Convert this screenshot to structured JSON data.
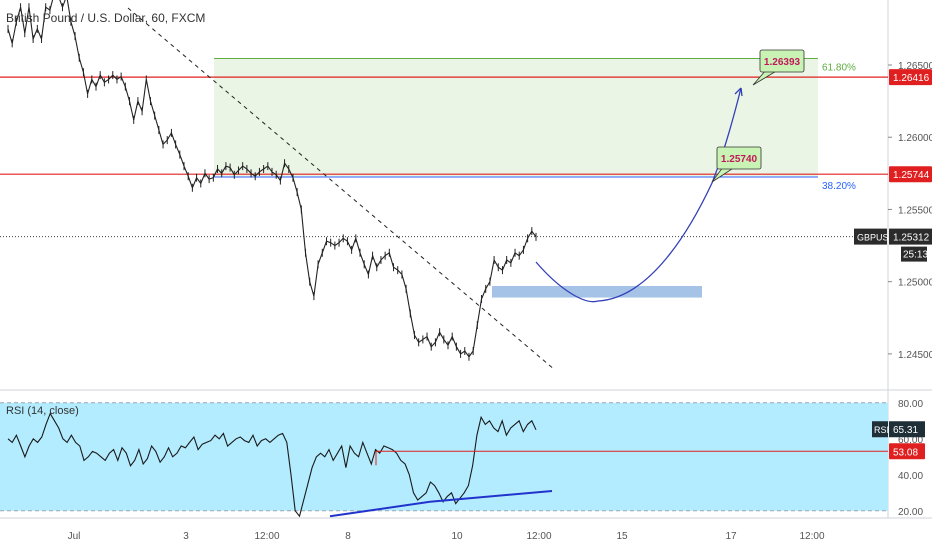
{
  "chart_data": {
    "type": "line",
    "title": "British Pound / U.S. Dollar, 60, FXCM",
    "symbol": "GBPUSD",
    "colors": {
      "price": "#222222",
      "rsi": "#1a1a1a",
      "resistance": "#e02020",
      "fib_line": "#2862ff",
      "projection": "#3340b8",
      "zone_fill": "#eaf5e6",
      "rsi_band": "#b3ecff",
      "support_box": "#8fb4e0",
      "label_fill": "#c8f3b4"
    },
    "price_axis": {
      "ylim": [
        1.2425,
        1.2695
      ],
      "ticks": [
        "1.24500",
        "1.25000",
        "1.25500",
        "1.26000",
        "1.26500"
      ]
    },
    "x_axis": {
      "ticks": [
        "Jul",
        "3",
        "12:00",
        "8",
        "10",
        "12:00",
        "15",
        "17",
        "12:00"
      ]
    },
    "current_price": {
      "label": "GBPUSD",
      "value": "1.25312",
      "countdown": "25:13"
    },
    "levels": [
      {
        "name": "upper-resistance",
        "price": 1.26416,
        "label": "1.26416"
      },
      {
        "name": "lower-resistance",
        "price": 1.25744,
        "label": "1.25744"
      }
    ],
    "fibonacci": [
      {
        "label": "61.80%",
        "price": 1.26545
      },
      {
        "label": "38.20%",
        "price": 1.25725
      }
    ],
    "targets": [
      {
        "label": "1.25740",
        "price": 1.2574
      },
      {
        "label": "1.26393",
        "price": 1.26393
      }
    ],
    "support_zone": [
      1.2489,
      1.2497
    ],
    "price_series": [
      1.2675,
      1.2665,
      1.268,
      1.269,
      1.2672,
      1.269,
      1.2668,
      1.2675,
      1.2668,
      1.269,
      1.2688,
      1.2699,
      1.2698,
      1.269,
      1.2698,
      1.268,
      1.267,
      1.2655,
      1.2645,
      1.263,
      1.264,
      1.2635,
      1.2643,
      1.2638,
      1.264,
      1.2643,
      1.264,
      1.2642,
      1.2635,
      1.2625,
      1.2612,
      1.2625,
      1.2618,
      1.264,
      1.2625,
      1.2615,
      1.2605,
      1.2595,
      1.2598,
      1.2603,
      1.2595,
      1.2588,
      1.258,
      1.2573,
      1.2565,
      1.2572,
      1.2568,
      1.2575,
      1.2571,
      1.2572,
      1.2578,
      1.2575,
      1.258,
      1.2579,
      1.2574,
      1.2577,
      1.258,
      1.2578,
      1.2575,
      1.2573,
      1.2576,
      1.2578,
      1.258,
      1.2576,
      1.2574,
      1.257,
      1.2582,
      1.2578,
      1.2572,
      1.2562,
      1.255,
      1.252,
      1.25,
      1.249,
      1.2512,
      1.252,
      1.2528,
      1.2527,
      1.2525,
      1.2527,
      1.253,
      1.2528,
      1.2522,
      1.253,
      1.252,
      1.2512,
      1.2505,
      1.2518,
      1.251,
      1.2515,
      1.2518,
      1.252,
      1.251,
      1.2508,
      1.2505,
      1.2495,
      1.2478,
      1.2463,
      1.2458,
      1.246,
      1.2462,
      1.2455,
      1.2458,
      1.2465,
      1.246,
      1.2456,
      1.2462,
      1.2455,
      1.245,
      1.2452,
      1.2448,
      1.2452,
      1.247,
      1.2488,
      1.2495,
      1.25,
      1.2515,
      1.251,
      1.2508,
      1.2515,
      1.2513,
      1.252,
      1.2518,
      1.2522,
      1.253,
      1.2535,
      1.2531
    ],
    "rsi_panel": {
      "label": "RSI (14, close)",
      "value": "65.31",
      "level": "53.08",
      "level_value": 53.08,
      "ylim": [
        16,
        86
      ],
      "ticks": [
        "20.00",
        "40.00",
        "60.00",
        "80.00"
      ],
      "band": [
        20,
        80
      ],
      "series": [
        60,
        58,
        62,
        56,
        50,
        56,
        60,
        58,
        61,
        68,
        74,
        70,
        66,
        60,
        58,
        62,
        58,
        56,
        48,
        50,
        53,
        52,
        50,
        48,
        52,
        54,
        48,
        55,
        52,
        45,
        48,
        54,
        46,
        49,
        56,
        53,
        47,
        50,
        55,
        50,
        52,
        56,
        55,
        58,
        61,
        54,
        57,
        58,
        59,
        62,
        60,
        63,
        56,
        58,
        60,
        61,
        59,
        58,
        62,
        56,
        59,
        60,
        58,
        60,
        62,
        63,
        58,
        40,
        20,
        17,
        26,
        35,
        44,
        50,
        52,
        50,
        54,
        48,
        52,
        56,
        44,
        56,
        52,
        50,
        58,
        52,
        46,
        54,
        52,
        56,
        55,
        54,
        52,
        48,
        46,
        40,
        30,
        26,
        28,
        30,
        36,
        34,
        30,
        25,
        28,
        30,
        24,
        27,
        30,
        34,
        45,
        62,
        72,
        68,
        70,
        66,
        64,
        70,
        62,
        66,
        68,
        70,
        64,
        68,
        70,
        65
      ]
    }
  }
}
